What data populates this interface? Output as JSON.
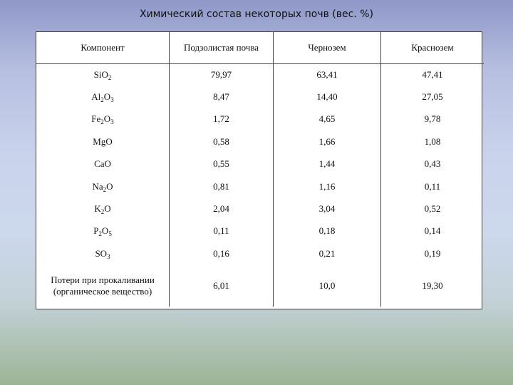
{
  "title": "Химический состав некоторых почв (вес. %)",
  "table": {
    "headers": [
      "Компонент",
      "Подзолистая почва",
      "Чернозем",
      "Краснозем"
    ],
    "rows": [
      {
        "component": {
          "base": [
            "Si",
            "O"
          ],
          "subs": [
            "",
            "2"
          ]
        },
        "values": [
          "79,97",
          "63,41",
          "47,41"
        ]
      },
      {
        "component": {
          "base": [
            "Al",
            "O"
          ],
          "subs": [
            "2",
            "3"
          ]
        },
        "values": [
          "8,47",
          "14,40",
          "27,05"
        ]
      },
      {
        "component": {
          "base": [
            "Fe",
            "O"
          ],
          "subs": [
            "2",
            "3"
          ]
        },
        "values": [
          "1,72",
          "4,65",
          "9,78"
        ]
      },
      {
        "component": {
          "base": [
            "MgO"
          ],
          "subs": [
            ""
          ]
        },
        "values": [
          "0,58",
          "1,66",
          "1,08"
        ]
      },
      {
        "component": {
          "base": [
            "CaO"
          ],
          "subs": [
            ""
          ]
        },
        "values": [
          "0,55",
          "1,44",
          "0,43"
        ]
      },
      {
        "component": {
          "base": [
            "Na",
            "O"
          ],
          "subs": [
            "2",
            ""
          ]
        },
        "values": [
          "0,81",
          "1,16",
          "0,11"
        ]
      },
      {
        "component": {
          "base": [
            "K",
            "O"
          ],
          "subs": [
            "2",
            ""
          ]
        },
        "values": [
          "2,04",
          "3,04",
          "0,52"
        ]
      },
      {
        "component": {
          "base": [
            "P",
            "O"
          ],
          "subs": [
            "2",
            "5"
          ]
        },
        "values": [
          "0,11",
          "0,18",
          "0,14"
        ]
      },
      {
        "component": {
          "base": [
            "SO"
          ],
          "subs": [
            "3"
          ]
        },
        "values": [
          "0,16",
          "0,21",
          "0,19"
        ]
      },
      {
        "component": {
          "lines": [
            "Потери при прокаливании",
            "(органическое вещество)"
          ]
        },
        "values": [
          "6,01",
          "10,0",
          "19,30"
        ]
      }
    ]
  }
}
